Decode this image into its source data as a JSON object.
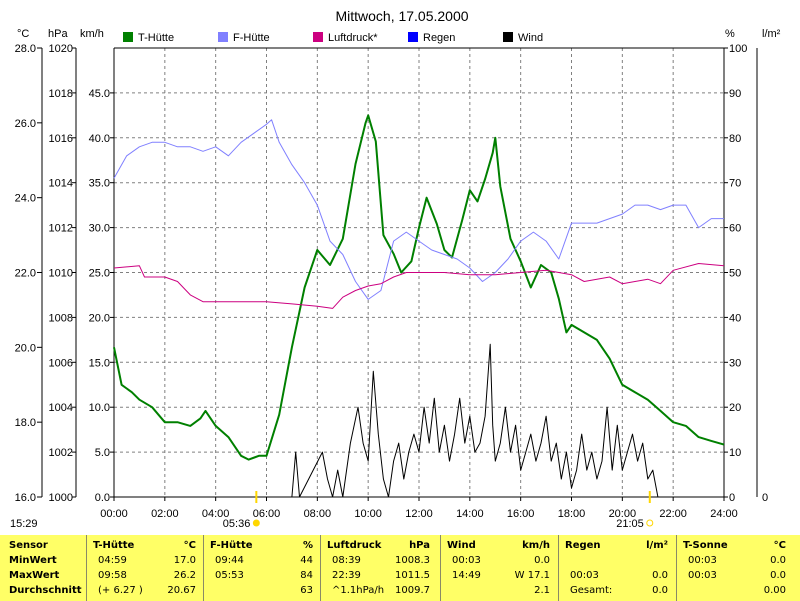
{
  "chart_data": {
    "type": "line",
    "title": "Mittwoch, 17.05.2000",
    "x_ticks": [
      "00:00",
      "02:00",
      "04:00",
      "06:00",
      "08:00",
      "10:00",
      "12:00",
      "14:00",
      "16:00",
      "18:00",
      "20:00",
      "22:00",
      "24:00"
    ],
    "axes": {
      "temp_c": {
        "unit": "°C",
        "range": [
          16.0,
          28.0
        ],
        "ticks": [
          "16.0",
          "18.0",
          "20.0",
          "22.0",
          "24.0",
          "26.0",
          "28.0"
        ]
      },
      "pressure_hpa": {
        "unit": "hPa",
        "range": [
          1000,
          1020
        ],
        "ticks": [
          "1000",
          "1002",
          "1004",
          "1006",
          "1008",
          "1010",
          "1012",
          "1014",
          "1016",
          "1018",
          "1020"
        ]
      },
      "wind_kmh": {
        "unit": "km/h",
        "range": [
          0,
          50
        ],
        "ticks": [
          "0.0",
          "5.0",
          "10.0",
          "15.0",
          "20.0",
          "25.0",
          "30.0",
          "35.0",
          "40.0",
          "45.0"
        ]
      },
      "humidity_pct": {
        "unit": "%",
        "range": [
          0,
          100
        ],
        "ticks": [
          "0",
          "10",
          "20",
          "30",
          "40",
          "50",
          "60",
          "70",
          "80",
          "90",
          "100"
        ]
      },
      "rain_lm2": {
        "unit": "l/m²",
        "range": [
          0,
          1
        ],
        "ticks": [
          "0"
        ]
      }
    },
    "legend": [
      {
        "name": "T-Hütte",
        "color": "#008000"
      },
      {
        "name": "F-Hütte",
        "color": "#8080ff"
      },
      {
        "name": "Luftdruck*",
        "color": "#cc0080"
      },
      {
        "name": "Regen",
        "color": "#0000ff"
      },
      {
        "name": "Wind",
        "color": "#000000"
      }
    ],
    "series": [
      {
        "name": "T-Hütte",
        "axis": "temp_c",
        "color": "#008000",
        "points": [
          [
            0.0,
            20.0
          ],
          [
            0.3,
            19.0
          ],
          [
            0.7,
            18.8
          ],
          [
            1.0,
            18.6
          ],
          [
            1.5,
            18.4
          ],
          [
            2.0,
            18.0
          ],
          [
            2.5,
            18.0
          ],
          [
            3.0,
            17.9
          ],
          [
            3.4,
            18.1
          ],
          [
            3.6,
            18.3
          ],
          [
            4.0,
            17.9
          ],
          [
            4.5,
            17.6
          ],
          [
            5.0,
            17.1
          ],
          [
            5.3,
            17.0
          ],
          [
            5.7,
            17.1
          ],
          [
            6.0,
            17.1
          ],
          [
            6.5,
            18.2
          ],
          [
            7.0,
            20.0
          ],
          [
            7.5,
            21.6
          ],
          [
            8.0,
            22.6
          ],
          [
            8.5,
            22.2
          ],
          [
            9.0,
            22.9
          ],
          [
            9.5,
            24.9
          ],
          [
            9.9,
            26.0
          ],
          [
            10.0,
            26.2
          ],
          [
            10.3,
            25.5
          ],
          [
            10.6,
            23.0
          ],
          [
            11.0,
            22.5
          ],
          [
            11.3,
            22.0
          ],
          [
            11.7,
            22.3
          ],
          [
            12.0,
            23.2
          ],
          [
            12.3,
            24.0
          ],
          [
            12.7,
            23.3
          ],
          [
            13.0,
            22.6
          ],
          [
            13.3,
            22.4
          ],
          [
            13.7,
            23.4
          ],
          [
            14.0,
            24.2
          ],
          [
            14.3,
            23.9
          ],
          [
            14.6,
            24.5
          ],
          [
            14.9,
            25.2
          ],
          [
            15.0,
            25.6
          ],
          [
            15.2,
            24.3
          ],
          [
            15.6,
            22.9
          ],
          [
            16.0,
            22.3
          ],
          [
            16.4,
            21.6
          ],
          [
            16.8,
            22.2
          ],
          [
            17.2,
            22.0
          ],
          [
            17.5,
            21.3
          ],
          [
            17.8,
            20.4
          ],
          [
            18.0,
            20.6
          ],
          [
            18.5,
            20.4
          ],
          [
            19.0,
            20.2
          ],
          [
            19.5,
            19.7
          ],
          [
            20.0,
            19.0
          ],
          [
            20.5,
            18.8
          ],
          [
            21.0,
            18.6
          ],
          [
            21.5,
            18.3
          ],
          [
            22.0,
            18.0
          ],
          [
            22.5,
            17.9
          ],
          [
            23.0,
            17.6
          ],
          [
            23.5,
            17.5
          ],
          [
            24.0,
            17.4
          ]
        ]
      },
      {
        "name": "F-Hütte",
        "axis": "humidity_pct",
        "color": "#8080ff",
        "points": [
          [
            0.0,
            71
          ],
          [
            0.5,
            76
          ],
          [
            1.0,
            78
          ],
          [
            1.5,
            79
          ],
          [
            2.0,
            79
          ],
          [
            2.5,
            78
          ],
          [
            3.0,
            78
          ],
          [
            3.5,
            77
          ],
          [
            4.0,
            78
          ],
          [
            4.5,
            76
          ],
          [
            5.0,
            79
          ],
          [
            5.5,
            81
          ],
          [
            6.0,
            83
          ],
          [
            6.2,
            84
          ],
          [
            6.5,
            79
          ],
          [
            7.0,
            74
          ],
          [
            7.5,
            70
          ],
          [
            8.0,
            65
          ],
          [
            8.5,
            57
          ],
          [
            9.0,
            54
          ],
          [
            9.5,
            48
          ],
          [
            10.0,
            44
          ],
          [
            10.5,
            46
          ],
          [
            11.0,
            57
          ],
          [
            11.5,
            59
          ],
          [
            12.0,
            57
          ],
          [
            12.5,
            55
          ],
          [
            13.0,
            54
          ],
          [
            13.5,
            53
          ],
          [
            14.0,
            51
          ],
          [
            14.5,
            48
          ],
          [
            15.0,
            50
          ],
          [
            15.5,
            53
          ],
          [
            16.0,
            57
          ],
          [
            16.5,
            59
          ],
          [
            17.0,
            57
          ],
          [
            17.5,
            53
          ],
          [
            18.0,
            61
          ],
          [
            18.5,
            61
          ],
          [
            19.0,
            61
          ],
          [
            19.5,
            62
          ],
          [
            20.0,
            63
          ],
          [
            20.5,
            65
          ],
          [
            21.0,
            65
          ],
          [
            21.5,
            64
          ],
          [
            22.0,
            65
          ],
          [
            22.5,
            65
          ],
          [
            23.0,
            60
          ],
          [
            23.5,
            62
          ],
          [
            24.0,
            62
          ]
        ]
      },
      {
        "name": "Luftdruck*",
        "axis": "pressure_hpa",
        "color": "#cc0080",
        "points": [
          [
            0.0,
            1010.2
          ],
          [
            1.0,
            1010.3
          ],
          [
            1.2,
            1009.8
          ],
          [
            2.0,
            1009.8
          ],
          [
            2.5,
            1009.6
          ],
          [
            3.0,
            1009.0
          ],
          [
            3.5,
            1008.7
          ],
          [
            4.0,
            1008.7
          ],
          [
            5.0,
            1008.7
          ],
          [
            6.0,
            1008.7
          ],
          [
            7.0,
            1008.6
          ],
          [
            8.0,
            1008.5
          ],
          [
            8.6,
            1008.4
          ],
          [
            9.0,
            1008.9
          ],
          [
            9.5,
            1009.2
          ],
          [
            10.0,
            1009.4
          ],
          [
            10.5,
            1009.5
          ],
          [
            11.0,
            1009.8
          ],
          [
            11.5,
            1010.0
          ],
          [
            12.0,
            1010.0
          ],
          [
            13.0,
            1010.0
          ],
          [
            14.0,
            1009.9
          ],
          [
            15.0,
            1009.9
          ],
          [
            16.0,
            1010.0
          ],
          [
            17.0,
            1010.1
          ],
          [
            17.5,
            1010.0
          ],
          [
            18.0,
            1009.9
          ],
          [
            18.5,
            1009.6
          ],
          [
            19.0,
            1009.7
          ],
          [
            19.5,
            1009.8
          ],
          [
            20.0,
            1009.5
          ],
          [
            20.5,
            1009.6
          ],
          [
            21.0,
            1009.7
          ],
          [
            21.5,
            1009.5
          ],
          [
            22.0,
            1010.1
          ],
          [
            23.0,
            1010.4
          ],
          [
            24.0,
            1010.3
          ]
        ]
      },
      {
        "name": "Wind",
        "axis": "wind_kmh",
        "color": "#000000",
        "points": [
          [
            0.0,
            0
          ],
          [
            7.0,
            0
          ],
          [
            7.15,
            5
          ],
          [
            7.3,
            0
          ],
          [
            8.2,
            5
          ],
          [
            8.4,
            2
          ],
          [
            8.6,
            0
          ],
          [
            8.8,
            3
          ],
          [
            9.0,
            0
          ],
          [
            9.3,
            6
          ],
          [
            9.6,
            10
          ],
          [
            9.8,
            6
          ],
          [
            10.0,
            4
          ],
          [
            10.2,
            14
          ],
          [
            10.4,
            7
          ],
          [
            10.6,
            2
          ],
          [
            10.8,
            0
          ],
          [
            11.0,
            4
          ],
          [
            11.2,
            6
          ],
          [
            11.4,
            2
          ],
          [
            11.6,
            5
          ],
          [
            11.8,
            7
          ],
          [
            12.0,
            5
          ],
          [
            12.2,
            10
          ],
          [
            12.4,
            6
          ],
          [
            12.6,
            11
          ],
          [
            12.8,
            5
          ],
          [
            13.0,
            8
          ],
          [
            13.2,
            4
          ],
          [
            13.4,
            7
          ],
          [
            13.6,
            11
          ],
          [
            13.8,
            6
          ],
          [
            14.0,
            9
          ],
          [
            14.2,
            5
          ],
          [
            14.4,
            6
          ],
          [
            14.6,
            9
          ],
          [
            14.8,
            17
          ],
          [
            14.9,
            8
          ],
          [
            15.0,
            4
          ],
          [
            15.2,
            6
          ],
          [
            15.4,
            10
          ],
          [
            15.6,
            5
          ],
          [
            15.8,
            8
          ],
          [
            16.0,
            3
          ],
          [
            16.2,
            5
          ],
          [
            16.4,
            7
          ],
          [
            16.6,
            4
          ],
          [
            16.8,
            6
          ],
          [
            17.0,
            9
          ],
          [
            17.2,
            4
          ],
          [
            17.4,
            6
          ],
          [
            17.6,
            2
          ],
          [
            17.8,
            5
          ],
          [
            18.0,
            1
          ],
          [
            18.2,
            3
          ],
          [
            18.4,
            7
          ],
          [
            18.6,
            3
          ],
          [
            18.8,
            5
          ],
          [
            19.0,
            2
          ],
          [
            19.2,
            4
          ],
          [
            19.4,
            10
          ],
          [
            19.6,
            3
          ],
          [
            19.8,
            8
          ],
          [
            20.0,
            3
          ],
          [
            20.2,
            5
          ],
          [
            20.4,
            7
          ],
          [
            20.6,
            4
          ],
          [
            20.8,
            6
          ],
          [
            21.0,
            2
          ],
          [
            21.2,
            3
          ],
          [
            21.4,
            0
          ],
          [
            24.0,
            0
          ]
        ]
      }
    ],
    "sun_markers": [
      {
        "time": "05:36",
        "x": 5.6
      },
      {
        "time": "21:05",
        "x": 21.08
      }
    ],
    "time_label": "15:29",
    "grid": true
  },
  "stats": {
    "row_labels": [
      "Sensor",
      "MinWert",
      "MaxWert",
      "Durchschnitt"
    ],
    "panels": [
      {
        "name": "T-Hütte",
        "unit": "°C",
        "rows": [
          [
            "04:59",
            "17.0"
          ],
          [
            "09:58",
            "26.2"
          ],
          [
            "(+ 6.27 )",
            "20.67"
          ]
        ]
      },
      {
        "name": "F-Hütte",
        "unit": "%",
        "rows": [
          [
            "09:44",
            "44"
          ],
          [
            "05:53",
            "84"
          ],
          [
            "",
            "63"
          ]
        ]
      },
      {
        "name": "Luftdruck",
        "unit": "hPa",
        "rows": [
          [
            "08:39",
            "1008.3"
          ],
          [
            "22:39",
            "1011.5"
          ],
          [
            "^1.1hPa/h",
            "1009.7"
          ]
        ]
      },
      {
        "name": "Wind",
        "unit": "km/h",
        "rows": [
          [
            "00:03",
            "0.0"
          ],
          [
            "14:49",
            "W 17.1"
          ],
          [
            "",
            "2.1"
          ]
        ]
      },
      {
        "name": "Regen",
        "unit": "l/m²",
        "rows": [
          [
            "",
            ""
          ],
          [
            "00:03",
            "0.0"
          ],
          [
            "Gesamt:",
            "0.0"
          ]
        ]
      },
      {
        "name": "T-Sonne",
        "unit": "°C",
        "rows": [
          [
            "00:03",
            "0.0"
          ],
          [
            "00:03",
            "0.0"
          ],
          [
            "",
            "0.00"
          ]
        ]
      }
    ]
  }
}
